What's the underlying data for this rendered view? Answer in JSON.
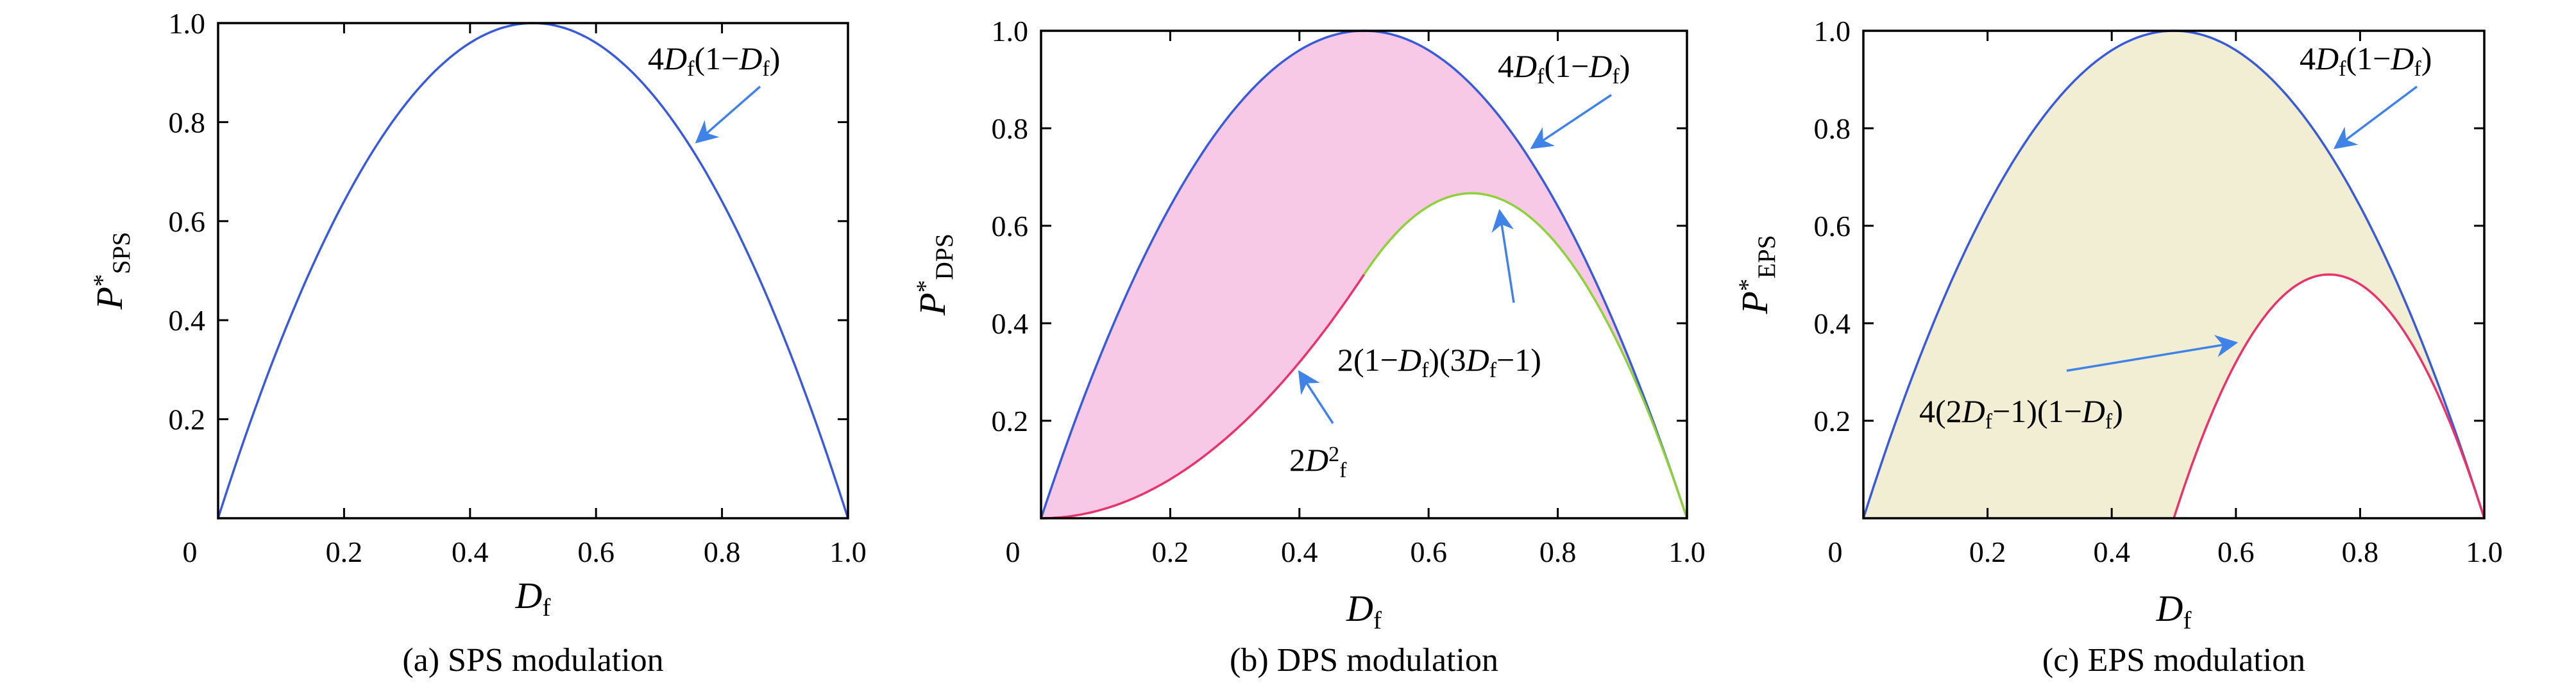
{
  "colors": {
    "upper_curve": "#3a5bd9",
    "arrow": "#3f82e8",
    "dps_fill": "#f7c9e6",
    "dps_lower_left": "#e8336b",
    "dps_lower_right": "#8fd13a",
    "eps_fill": "#f2eed4",
    "eps_lower": "#e8336b"
  },
  "chart_data": [
    {
      "type": "line",
      "caption": "(a) SPS modulation",
      "xlabel": "D",
      "xlabel_sub": "f",
      "ylabel": "P",
      "ylabel_sup": "*",
      "ylabel_sub": "SPS",
      "xlim": [
        0,
        1
      ],
      "ylim": [
        0,
        1
      ],
      "xticks": [
        "0",
        "0.2",
        "0.4",
        "0.6",
        "0.8",
        "1.0"
      ],
      "yticks": [
        "0.2",
        "0.4",
        "0.6",
        "0.8",
        "1.0"
      ],
      "series": [
        {
          "formula": "4Df(1−Df)",
          "x": [
            0,
            0.1,
            0.2,
            0.3,
            0.4,
            0.5,
            0.6,
            0.7,
            0.8,
            0.9,
            1.0
          ],
          "y": [
            0,
            0.36,
            0.64,
            0.84,
            0.96,
            1.0,
            0.96,
            0.84,
            0.64,
            0.36,
            0
          ]
        }
      ],
      "annotations": [
        {
          "parts": [
            [
              "",
              "4"
            ],
            [
              "it",
              "D"
            ],
            [
              "sub",
              "f"
            ],
            [
              "",
              "(1−"
            ],
            [
              "it",
              "D"
            ],
            [
              "sub",
              "f"
            ],
            [
              "",
              ")"
            ]
          ]
        }
      ]
    },
    {
      "type": "area",
      "caption": "(b) DPS modulation",
      "xlabel": "D",
      "xlabel_sub": "f",
      "ylabel": "P",
      "ylabel_sup": "*",
      "ylabel_sub": "DPS",
      "xlim": [
        0,
        1
      ],
      "ylim": [
        0,
        1
      ],
      "xticks": [
        "0",
        "0.2",
        "0.4",
        "0.6",
        "0.8",
        "1.0"
      ],
      "yticks": [
        "0.2",
        "0.4",
        "0.6",
        "0.8",
        "1.0"
      ],
      "series": [
        {
          "formula": "4Df(1−Df)",
          "x": [
            0,
            0.1,
            0.2,
            0.3,
            0.4,
            0.5,
            0.6,
            0.7,
            0.8,
            0.9,
            1.0
          ],
          "y": [
            0,
            0.36,
            0.64,
            0.84,
            0.96,
            1.0,
            0.96,
            0.84,
            0.64,
            0.36,
            0
          ]
        },
        {
          "formula": "2Df²",
          "x": [
            0,
            0.1,
            0.2,
            0.3,
            0.4,
            0.5
          ],
          "y": [
            0,
            0.02,
            0.08,
            0.18,
            0.32,
            0.5
          ]
        },
        {
          "formula": "2(1−Df)(3Df−1)",
          "x": [
            0.5,
            0.6,
            0.667,
            0.7,
            0.8,
            0.9,
            1.0
          ],
          "y": [
            0.5,
            0.64,
            0.667,
            0.66,
            0.56,
            0.34,
            0
          ]
        }
      ],
      "annotations": [
        {
          "parts": [
            [
              "",
              "4"
            ],
            [
              "it",
              "D"
            ],
            [
              "sub",
              "f"
            ],
            [
              "",
              "(1−"
            ],
            [
              "it",
              "D"
            ],
            [
              "sub",
              "f"
            ],
            [
              "",
              ")"
            ]
          ]
        },
        {
          "parts": [
            [
              "",
              "2(1−"
            ],
            [
              "it",
              "D"
            ],
            [
              "sub",
              "f"
            ],
            [
              "",
              ")(3"
            ],
            [
              "it",
              "D"
            ],
            [
              "sub",
              "f"
            ],
            [
              "",
              "−1)"
            ]
          ]
        },
        {
          "parts": [
            [
              "",
              "2"
            ],
            [
              "it",
              "D"
            ],
            [
              "sup",
              "2"
            ],
            [
              "sub",
              "f"
            ]
          ]
        }
      ]
    },
    {
      "type": "area",
      "caption": "(c) EPS modulation",
      "xlabel": "D",
      "xlabel_sub": "f",
      "ylabel": "P",
      "ylabel_sup": "*",
      "ylabel_sub": "EPS",
      "xlim": [
        0,
        1
      ],
      "ylim": [
        0,
        1
      ],
      "xticks": [
        "0",
        "0.2",
        "0.4",
        "0.6",
        "0.8",
        "1.0"
      ],
      "yticks": [
        "0.2",
        "0.4",
        "0.6",
        "0.8",
        "1.0"
      ],
      "series": [
        {
          "formula": "4Df(1−Df)",
          "x": [
            0,
            0.1,
            0.2,
            0.3,
            0.4,
            0.5,
            0.6,
            0.7,
            0.8,
            0.9,
            1.0
          ],
          "y": [
            0,
            0.36,
            0.64,
            0.84,
            0.96,
            1.0,
            0.96,
            0.84,
            0.64,
            0.36,
            0
          ]
        },
        {
          "formula": "4(2Df−1)(1−Df)",
          "x": [
            0.5,
            0.6,
            0.7,
            0.75,
            0.8,
            0.9,
            1.0
          ],
          "y": [
            0,
            0.32,
            0.48,
            0.5,
            0.48,
            0.32,
            0
          ]
        }
      ],
      "annotations": [
        {
          "parts": [
            [
              "",
              "4"
            ],
            [
              "it",
              "D"
            ],
            [
              "sub",
              "f"
            ],
            [
              "",
              "(1−"
            ],
            [
              "it",
              "D"
            ],
            [
              "sub",
              "f"
            ],
            [
              "",
              ")"
            ]
          ]
        },
        {
          "parts": [
            [
              "",
              "4(2"
            ],
            [
              "it",
              "D"
            ],
            [
              "sub",
              "f"
            ],
            [
              "",
              "−1)(1−"
            ],
            [
              "it",
              "D"
            ],
            [
              "sub",
              "f"
            ],
            [
              "",
              ")"
            ]
          ]
        }
      ]
    }
  ]
}
